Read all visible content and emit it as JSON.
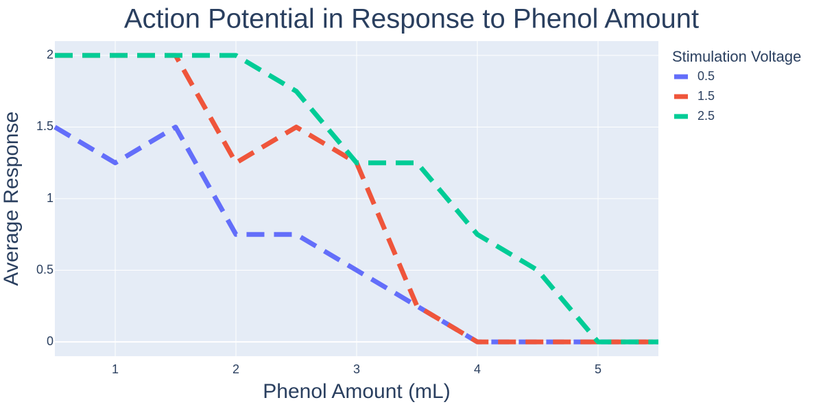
{
  "chart_data": {
    "type": "line",
    "title": "Action Potential in Response to Phenol Amount",
    "xlabel": "Phenol Amount (mL)",
    "ylabel": "Average Response",
    "xlim": [
      0.5,
      5.5
    ],
    "ylim": [
      -0.1,
      2.1
    ],
    "xticks": [
      1,
      2,
      3,
      4,
      5
    ],
    "xtick_labels": [
      "1",
      "2",
      "3",
      "4",
      "5"
    ],
    "yticks": [
      0,
      0.5,
      1,
      1.5,
      2
    ],
    "ytick_labels": [
      "0",
      "0.5",
      "1",
      "1.5",
      "2"
    ],
    "grid": true,
    "line_style": "dashed",
    "legend": {
      "title": "Stimulation Voltage",
      "position": "top-right-outside"
    },
    "x": [
      0.5,
      1,
      1.5,
      2,
      2.5,
      3,
      3.5,
      4,
      4.5,
      5,
      5.5
    ],
    "series": [
      {
        "name": "0.5",
        "color": "#636efa",
        "values": [
          1.5,
          1.25,
          1.5,
          0.75,
          0.75,
          0.5,
          0.25,
          0,
          0,
          0,
          0
        ]
      },
      {
        "name": "1.5",
        "color": "#ef553b",
        "values": [
          2,
          2,
          2,
          1.25,
          1.5,
          1.25,
          0.25,
          0,
          0,
          0,
          0
        ]
      },
      {
        "name": "2.5",
        "color": "#00cc96",
        "values": [
          2,
          2,
          2,
          2,
          1.75,
          1.25,
          1.25,
          0.75,
          0.5,
          0,
          0
        ]
      }
    ],
    "colors": {
      "plot_background": "#e5ecf6",
      "grid": "#ffffff",
      "text": "#2a3f5f"
    }
  }
}
